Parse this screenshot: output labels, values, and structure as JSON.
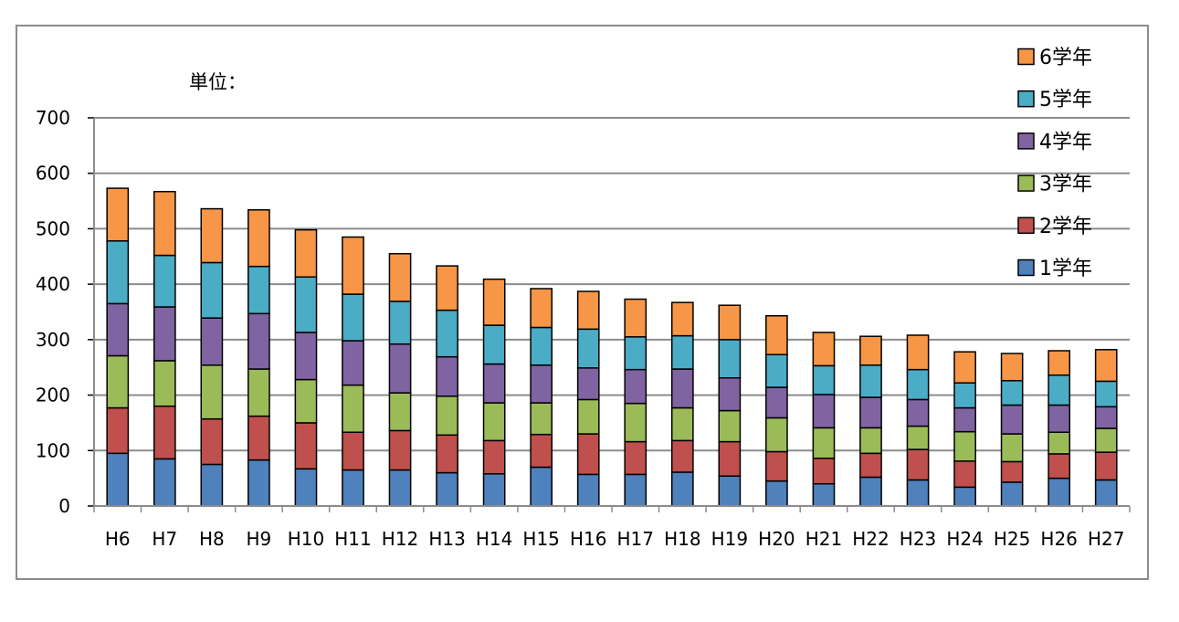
{
  "chart_data": {
    "type": "bar",
    "stacked": true,
    "unit_label": "単位：",
    "categories": [
      "H6",
      "H7",
      "H8",
      "H9",
      "H10",
      "H11",
      "H12",
      "H13",
      "H14",
      "H15",
      "H16",
      "H17",
      "H18",
      "H19",
      "H20",
      "H21",
      "H22",
      "H23",
      "H24",
      "H25",
      "H26",
      "H27"
    ],
    "series": [
      {
        "name": "1学年",
        "color": "#4F81BD",
        "values": [
          95,
          85,
          75,
          83,
          67,
          65,
          65,
          60,
          58,
          70,
          57,
          57,
          61,
          54,
          45,
          40,
          52,
          47,
          34,
          43,
          50,
          47
        ]
      },
      {
        "name": "2学年",
        "color": "#C0504D",
        "values": [
          82,
          95,
          82,
          79,
          83,
          68,
          71,
          68,
          60,
          59,
          73,
          59,
          57,
          62,
          53,
          46,
          43,
          55,
          47,
          37,
          44,
          50
        ]
      },
      {
        "name": "3学年",
        "color": "#9BBB59",
        "values": [
          94,
          82,
          97,
          85,
          78,
          85,
          68,
          70,
          68,
          57,
          62,
          69,
          59,
          56,
          61,
          55,
          46,
          42,
          53,
          50,
          39,
          43
        ]
      },
      {
        "name": "4学年",
        "color": "#8064A2",
        "values": [
          94,
          97,
          85,
          100,
          85,
          80,
          88,
          71,
          70,
          68,
          57,
          61,
          70,
          59,
          55,
          60,
          55,
          48,
          43,
          52,
          49,
          39
        ]
      },
      {
        "name": "5学年",
        "color": "#4BACC6",
        "values": [
          113,
          93,
          100,
          85,
          100,
          84,
          77,
          84,
          70,
          68,
          70,
          59,
          60,
          69,
          59,
          52,
          58,
          54,
          45,
          44,
          54,
          46
        ]
      },
      {
        "name": "6学年",
        "color": "#F79646",
        "values": [
          95,
          115,
          97,
          102,
          85,
          103,
          86,
          80,
          83,
          70,
          68,
          68,
          60,
          62,
          70,
          60,
          52,
          62,
          56,
          49,
          44,
          57
        ]
      }
    ],
    "yticks": [
      0,
      100,
      200,
      300,
      400,
      500,
      600,
      700
    ],
    "ylim": [
      0,
      700
    ],
    "grid": true,
    "legend": "top-right"
  }
}
